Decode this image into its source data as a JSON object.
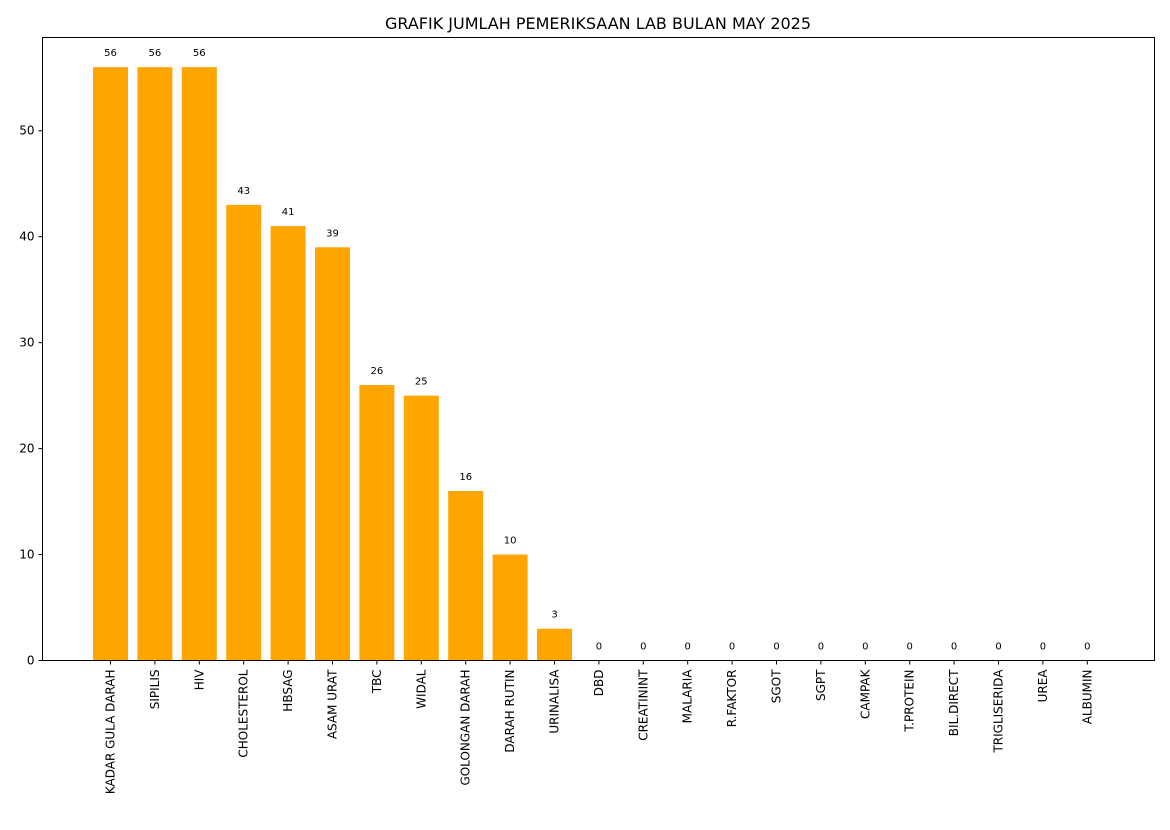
{
  "chart_data": {
    "type": "bar",
    "title": "GRAFIK JUMLAH PEMERIKSAAN LAB BULAN MAY 2025",
    "xlabel": "",
    "ylabel": "",
    "categories": [
      "KADAR GULA DARAH",
      "SIPILIS",
      "HIV",
      "CHOLESTEROL",
      "HBSAG",
      "ASAM URAT",
      "TBC",
      "WIDAL",
      "GOLONGAN DARAH",
      "DARAH RUTIN",
      "URINALISA",
      "DBD",
      "CREATININT",
      "MALARIA",
      "R.FAKTOR",
      "SGOT",
      "SGPT",
      "CAMPAK",
      "T.PROTEIN",
      "BIL.DIRECT",
      "TRIGLISERIDA",
      "UREA",
      "ALBUMIN"
    ],
    "values": [
      56,
      56,
      56,
      43,
      41,
      39,
      26,
      25,
      16,
      10,
      3,
      0,
      0,
      0,
      0,
      0,
      0,
      0,
      0,
      0,
      0,
      0,
      0
    ],
    "ylim": [
      0,
      58.8
    ],
    "yticks": [
      0,
      10,
      20,
      30,
      40,
      50
    ],
    "bar_color": "#FFA500",
    "grid": false,
    "legend": "none",
    "data_labels": true
  }
}
